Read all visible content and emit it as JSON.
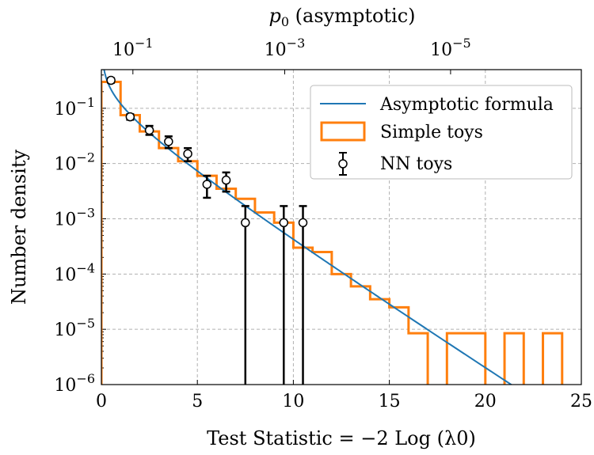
{
  "chart_data": {
    "type": "histogram+line+errorbar",
    "xlabel": "Test Statistic = −2 Log (λ0)",
    "ylabel": "Number density",
    "top_xlabel": "p0 (asymptotic)",
    "xlim": [
      0,
      25
    ],
    "ylim": [
      1e-06,
      0.5
    ],
    "yscale": "log",
    "grid": true,
    "x_ticks": [
      0,
      5,
      10,
      15,
      20,
      25
    ],
    "y_ticks": [
      {
        "value": 0.1,
        "exp": "−1"
      },
      {
        "value": 0.01,
        "exp": "−2"
      },
      {
        "value": 0.001,
        "exp": "−3"
      },
      {
        "value": 0.0001,
        "exp": "−4"
      },
      {
        "value": 1e-05,
        "exp": "−5"
      },
      {
        "value": 1e-06,
        "exp": "−6"
      }
    ],
    "top_ticks": [
      {
        "pvalue": 0.1,
        "exp": "−1"
      },
      {
        "pvalue": 0.001,
        "exp": "−3"
      },
      {
        "pvalue": 1e-05,
        "exp": "−5"
      }
    ],
    "legend": {
      "position": "top-right"
    },
    "series": [
      {
        "name": "Asymptotic formula",
        "kind": "line",
        "color": "#1f77b4",
        "formula": "exp(-t/2)/sqrt(2*pi*t)/2",
        "x_range": [
          0.05,
          25
        ]
      },
      {
        "name": "Simple toys",
        "kind": "step",
        "color": "#ff7f0e",
        "bin_edges": [
          0,
          1,
          2,
          3,
          4,
          5,
          6,
          7,
          8,
          9,
          10,
          11,
          12,
          13,
          14,
          15,
          16,
          17,
          18,
          19,
          20,
          21,
          22,
          23,
          24
        ],
        "values": [
          0.3,
          0.075,
          0.038,
          0.019,
          0.011,
          0.006,
          0.0035,
          0.0023,
          0.0013,
          0.00085,
          0.0003,
          0.00025,
          0.0001,
          6e-05,
          3.5e-05,
          2.5e-05,
          8.5e-06,
          0,
          8.5e-06,
          8.5e-06,
          0,
          8.5e-06,
          0,
          8.5e-06
        ]
      },
      {
        "name": "NN toys",
        "kind": "errorbar",
        "color": "#000000",
        "points": [
          {
            "x": 0.5,
            "y": 0.32,
            "lo": 0.29,
            "hi": 0.35
          },
          {
            "x": 1.5,
            "y": 0.07,
            "lo": 0.062,
            "hi": 0.078
          },
          {
            "x": 2.5,
            "y": 0.04,
            "lo": 0.033,
            "hi": 0.048
          },
          {
            "x": 3.5,
            "y": 0.025,
            "lo": 0.019,
            "hi": 0.031
          },
          {
            "x": 4.5,
            "y": 0.015,
            "lo": 0.011,
            "hi": 0.019
          },
          {
            "x": 5.5,
            "y": 0.0042,
            "lo": 0.0024,
            "hi": 0.006
          },
          {
            "x": 6.5,
            "y": 0.005,
            "lo": 0.0031,
            "hi": 0.0069
          },
          {
            "x": 7.5,
            "y": 0.00085,
            "lo": 1e-07,
            "hi": 0.0017
          },
          {
            "x": 9.5,
            "y": 0.00085,
            "lo": 1e-07,
            "hi": 0.0017
          },
          {
            "x": 10.5,
            "y": 0.00085,
            "lo": 1e-07,
            "hi": 0.0017
          }
        ]
      }
    ]
  }
}
